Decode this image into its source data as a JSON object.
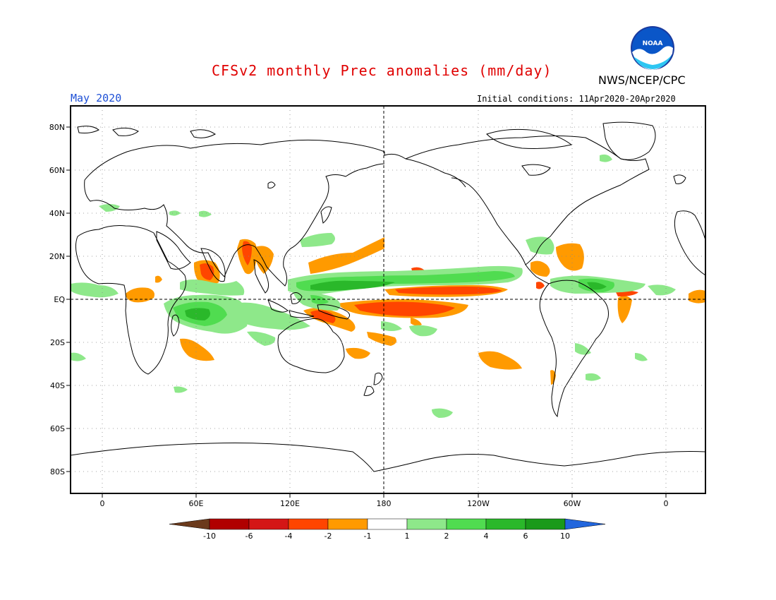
{
  "header": {
    "title": "CFSv2 monthly Prec anomalies (mm/day)",
    "org": "NWS/NCEP/CPC",
    "month": "May 2020",
    "initial_conditions": "Initial conditions: 11Apr2020-20Apr2020",
    "logo_text": "NOAA"
  },
  "axes": {
    "lat_labels": [
      "80N",
      "60N",
      "40N",
      "20N",
      "EQ",
      "20S",
      "40S",
      "60S",
      "80S"
    ],
    "lon_labels": [
      "0",
      "60E",
      "120E",
      "180",
      "120W",
      "60W",
      "0"
    ]
  },
  "colorbar": {
    "labels": [
      "-10",
      "-6",
      "-4",
      "-2",
      "-1",
      "1",
      "2",
      "4",
      "6",
      "10"
    ],
    "colors": [
      "#6b3a1c",
      "#b00000",
      "#d41616",
      "#ff4500",
      "#ff9a00",
      "#ffffff",
      "#8ee88a",
      "#50dc50",
      "#2ab82a",
      "#1a9a1a",
      "#2266dd"
    ]
  },
  "colors": {
    "title": "#e00000",
    "month": "#1e50d6",
    "coast": "#000000",
    "grid": "#888888"
  }
}
